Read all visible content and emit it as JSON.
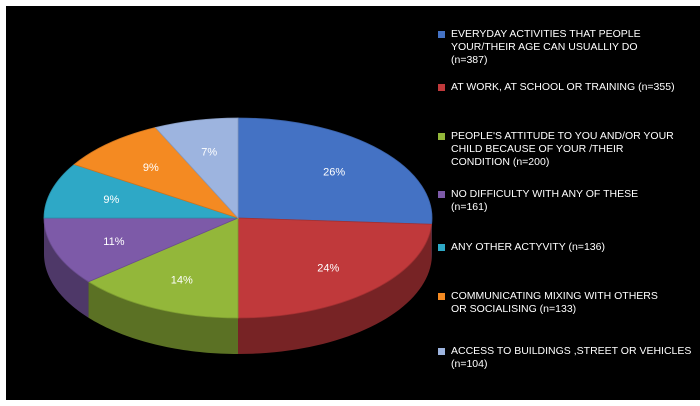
{
  "chart_data": {
    "type": "pie",
    "style": "3d",
    "legend_position": "right",
    "slices": [
      {
        "value": 26,
        "label": "26%",
        "legend": "EVERYDAY ACTIVITIES THAT PEOPLE\nYOUR/THEIR AGE CAN USUALLIY DO\n(n=387)",
        "color": "#4472c4"
      },
      {
        "value": 24,
        "label": "24%",
        "legend": "AT WORK, AT SCHOOL OR TRAINING (n=355)",
        "color": "#c0393b"
      },
      {
        "value": 14,
        "label": "14%",
        "legend": "PEOPLE'S ATTITUDE TO YOU AND/OR YOUR\nCHILD BECAUSE OF YOUR /THEIR\nCONDITION (n=200)",
        "color": "#93b73a"
      },
      {
        "value": 11,
        "label": "11%",
        "legend": "NO DIFFICULTY  WITH ANY OF THESE\n(n=161)",
        "color": "#7d5aa8"
      },
      {
        "value": 9,
        "label": "9%",
        "legend": "ANY OTHER ACTYVITY (n=136)",
        "color": "#2ea8c6"
      },
      {
        "value": 9,
        "label": "9%",
        "legend": "COMMUNICATING MIXING WITH  OTHERS\nOR SOCIALISING (n=133)",
        "color": "#f48a22"
      },
      {
        "value": 7,
        "label": "7%",
        "legend": "ACCESS TO BUILDINGS ,STREET OR VEHICLES\n(n=104)",
        "color": "#9db4df"
      }
    ]
  }
}
